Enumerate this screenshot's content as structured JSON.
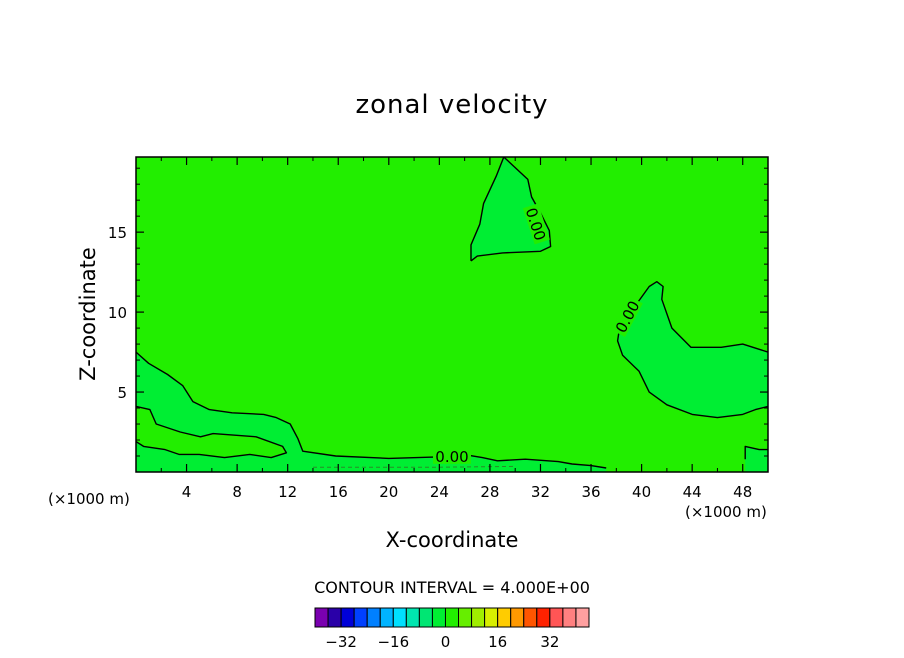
{
  "chart_data": {
    "type": "contour",
    "title": "zonal velocity",
    "xlabel": "X-coordinate",
    "ylabel": "Z-coordinate",
    "x_unit": "(×1000 m)",
    "z_unit": "(×1000 m)",
    "xlim": [
      0,
      50
    ],
    "ylim": [
      0,
      19.7
    ],
    "x_ticks": [
      4,
      8,
      12,
      16,
      20,
      24,
      28,
      32,
      36,
      40,
      44,
      48
    ],
    "y_ticks": [
      5,
      10,
      15
    ],
    "contour_interval_text": "CONTOUR INTERVAL = 4.000E+00",
    "contour_labels": [
      "0.00",
      "0.00",
      "0.00"
    ],
    "background_fill_color": "#22ee00",
    "negative_region_color": "#00ee33",
    "colorbar": {
      "tick_labels": [
        "-32",
        "-16",
        "0",
        "16",
        "32"
      ],
      "tick_values": [
        -32,
        -16,
        0,
        16,
        32
      ],
      "colors": [
        "#7a00b0",
        "#2a00a8",
        "#0000d8",
        "#0040ff",
        "#0080ff",
        "#00b4ff",
        "#00e0ff",
        "#00e6b0",
        "#00e673",
        "#00ee33",
        "#22ee00",
        "#66ee00",
        "#a0ee00",
        "#d8ee00",
        "#ffcc00",
        "#ff9900",
        "#ff5500",
        "#ff2200",
        "#ff5555",
        "#ff8080",
        "#ffa0a0"
      ]
    },
    "regions_negative": [
      {
        "name": "upper",
        "points": [
          [
            26.5,
            13.2
          ],
          [
            27,
            13.5
          ],
          [
            29,
            13.7
          ],
          [
            32,
            13.8
          ],
          [
            32.8,
            14.1
          ],
          [
            32.7,
            15.1
          ],
          [
            32,
            16.2
          ],
          [
            31.3,
            17.2
          ],
          [
            31.0,
            18.3
          ],
          [
            29.1,
            19.7
          ],
          [
            28.5,
            18.5
          ],
          [
            27.5,
            16.8
          ],
          [
            27.2,
            15.5
          ],
          [
            26.5,
            14.2
          ]
        ]
      },
      {
        "name": "right",
        "points": [
          [
            38.2,
            8.7
          ],
          [
            38.8,
            9.6
          ],
          [
            39.6,
            10.5
          ],
          [
            40.6,
            11.6
          ],
          [
            41.2,
            11.9
          ],
          [
            41.7,
            11.6
          ],
          [
            41.6,
            10.8
          ],
          [
            42.4,
            9.0
          ],
          [
            43.9,
            7.8
          ],
          [
            46.3,
            7.8
          ],
          [
            48.0,
            8.0
          ],
          [
            50,
            7.5
          ],
          [
            50,
            4.1
          ],
          [
            49.0,
            3.9
          ],
          [
            48.0,
            3.6
          ],
          [
            46.0,
            3.4
          ],
          [
            44.0,
            3.6
          ],
          [
            42.0,
            4.2
          ],
          [
            40.6,
            5.0
          ],
          [
            39.8,
            6.3
          ],
          [
            38.5,
            7.3
          ],
          [
            38.1,
            8.2
          ]
        ]
      },
      {
        "name": "bottom-left",
        "points": [
          [
            0,
            7.5
          ],
          [
            1.0,
            6.8
          ],
          [
            2.5,
            6.1
          ],
          [
            3.7,
            5.4
          ],
          [
            4.5,
            4.4
          ],
          [
            5.8,
            3.9
          ],
          [
            7.6,
            3.7
          ],
          [
            10.1,
            3.6
          ],
          [
            11.1,
            3.4
          ],
          [
            12.2,
            3.0
          ],
          [
            12.8,
            2.1
          ],
          [
            13.2,
            1.3
          ],
          [
            15.8,
            1.0
          ],
          [
            20,
            0.85
          ],
          [
            24.2,
            0.95
          ],
          [
            25.9,
            1.1
          ],
          [
            27.4,
            0.9
          ],
          [
            28.6,
            0.7
          ],
          [
            30.8,
            0.8
          ],
          [
            33.4,
            0.65
          ],
          [
            34.5,
            0.5
          ],
          [
            36.0,
            0.4
          ],
          [
            37.2,
            0.25
          ],
          [
            37.2,
            0
          ],
          [
            0,
            0
          ]
        ]
      },
      {
        "name": "bottom-right-edge",
        "points": [
          [
            48.2,
            1.6
          ],
          [
            49.3,
            1.4
          ],
          [
            50,
            1.4
          ],
          [
            50,
            0
          ],
          [
            48.2,
            0
          ],
          [
            48.2,
            0.8
          ]
        ]
      }
    ],
    "regions_positive": [
      {
        "name": "inner-left",
        "points": [
          [
            0,
            4.1
          ],
          [
            1.1,
            3.9
          ],
          [
            1.6,
            3.0
          ],
          [
            3.5,
            2.5
          ],
          [
            5.1,
            2.2
          ],
          [
            6.1,
            2.4
          ],
          [
            9.5,
            2.2
          ],
          [
            11.6,
            1.6
          ],
          [
            11.9,
            1.2
          ],
          [
            10.7,
            0.9
          ],
          [
            9.0,
            1.1
          ],
          [
            7.0,
            0.9
          ],
          [
            5.0,
            1.1
          ],
          [
            3.4,
            1.1
          ],
          [
            2.3,
            1.4
          ],
          [
            0.6,
            1.6
          ],
          [
            0,
            1.9
          ]
        ]
      }
    ],
    "contour_lines": [
      {
        "name": "upper-contour",
        "points": [
          [
            26.5,
            13.2
          ],
          [
            27,
            13.5
          ],
          [
            29,
            13.7
          ],
          [
            32,
            13.8
          ],
          [
            32.8,
            14.1
          ],
          [
            32.7,
            15.1
          ],
          [
            32,
            16.2
          ],
          [
            31.3,
            17.2
          ],
          [
            31.0,
            18.3
          ],
          [
            29.1,
            19.7
          ]
        ],
        "closed": false
      },
      {
        "name": "upper-contour-left",
        "points": [
          [
            26.5,
            13.2
          ],
          [
            26.5,
            14.2
          ],
          [
            27.2,
            15.5
          ],
          [
            27.5,
            16.8
          ],
          [
            28.5,
            18.5
          ],
          [
            29.1,
            19.7
          ]
        ],
        "closed": false
      },
      {
        "name": "right-contour",
        "points": [
          [
            50,
            7.5
          ],
          [
            48.0,
            8.0
          ],
          [
            46.3,
            7.8
          ],
          [
            43.9,
            7.8
          ],
          [
            42.4,
            9.0
          ],
          [
            41.6,
            10.8
          ],
          [
            41.7,
            11.6
          ],
          [
            41.2,
            11.9
          ],
          [
            40.6,
            11.6
          ],
          [
            39.6,
            10.5
          ],
          [
            38.8,
            9.6
          ],
          [
            38.2,
            8.7
          ],
          [
            38.1,
            8.2
          ],
          [
            38.5,
            7.3
          ],
          [
            39.8,
            6.3
          ],
          [
            40.6,
            5.0
          ],
          [
            42.0,
            4.2
          ],
          [
            44.0,
            3.6
          ],
          [
            46.0,
            3.4
          ],
          [
            48.0,
            3.6
          ],
          [
            49.0,
            3.9
          ],
          [
            50,
            4.1
          ]
        ],
        "closed": false
      },
      {
        "name": "bottom-left-contour",
        "points": [
          [
            0,
            7.5
          ],
          [
            1.0,
            6.8
          ],
          [
            2.5,
            6.1
          ],
          [
            3.7,
            5.4
          ],
          [
            4.5,
            4.4
          ],
          [
            5.8,
            3.9
          ],
          [
            7.6,
            3.7
          ],
          [
            10.1,
            3.6
          ],
          [
            11.1,
            3.4
          ],
          [
            12.2,
            3.0
          ],
          [
            12.8,
            2.1
          ],
          [
            13.2,
            1.3
          ],
          [
            15.8,
            1.0
          ],
          [
            20,
            0.85
          ],
          [
            24.2,
            0.95
          ],
          [
            25.9,
            1.1
          ],
          [
            27.4,
            0.9
          ],
          [
            28.6,
            0.7
          ],
          [
            30.8,
            0.8
          ],
          [
            33.4,
            0.65
          ],
          [
            34.5,
            0.5
          ],
          [
            36.0,
            0.4
          ],
          [
            37.2,
            0.25
          ]
        ],
        "closed": false
      },
      {
        "name": "inner-left-contour",
        "points": [
          [
            0,
            4.1
          ],
          [
            1.1,
            3.9
          ],
          [
            1.6,
            3.0
          ],
          [
            3.5,
            2.5
          ],
          [
            5.1,
            2.2
          ],
          [
            6.1,
            2.4
          ],
          [
            9.5,
            2.2
          ],
          [
            11.6,
            1.6
          ],
          [
            11.9,
            1.2
          ],
          [
            10.7,
            0.9
          ],
          [
            9.0,
            1.1
          ],
          [
            7.0,
            0.9
          ],
          [
            5.0,
            1.1
          ],
          [
            3.4,
            1.1
          ],
          [
            2.3,
            1.4
          ],
          [
            0.6,
            1.6
          ],
          [
            0,
            1.9
          ]
        ],
        "closed": false
      },
      {
        "name": "bottom-right-contour",
        "points": [
          [
            50,
            1.4
          ],
          [
            49.3,
            1.4
          ],
          [
            48.2,
            1.6
          ],
          [
            48.2,
            0.8
          ]
        ],
        "closed": false
      }
    ]
  }
}
